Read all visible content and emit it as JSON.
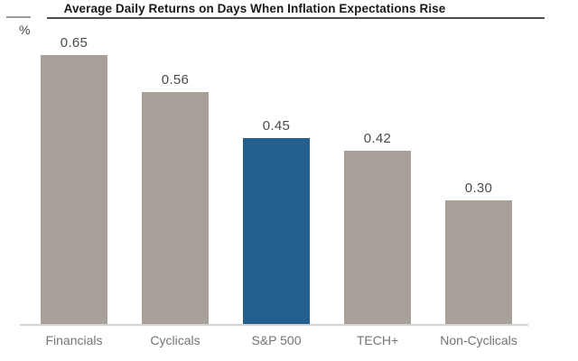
{
  "chart_data": {
    "type": "bar",
    "title": "Average Daily Returns on Days When Inflation Expectations Rise",
    "ylabel": "%",
    "xlabel": "",
    "categories": [
      "Financials",
      "Cyclicals",
      "S&P 500",
      "TECH+",
      "Non-Cyclicals"
    ],
    "values": [
      0.65,
      0.56,
      0.45,
      0.42,
      0.3
    ],
    "value_labels": [
      "0.65",
      "0.56",
      "0.45",
      "0.42",
      "0.30"
    ],
    "highlighted_category": "S&P 500",
    "bar_color_default": "#a8a19a",
    "bar_color_highlight": "#255f8d",
    "value_label_color": "#4b4b4b",
    "category_label_color": "#747474",
    "ylim": [
      0,
      0.78
    ],
    "grid": false,
    "legend": "none"
  }
}
